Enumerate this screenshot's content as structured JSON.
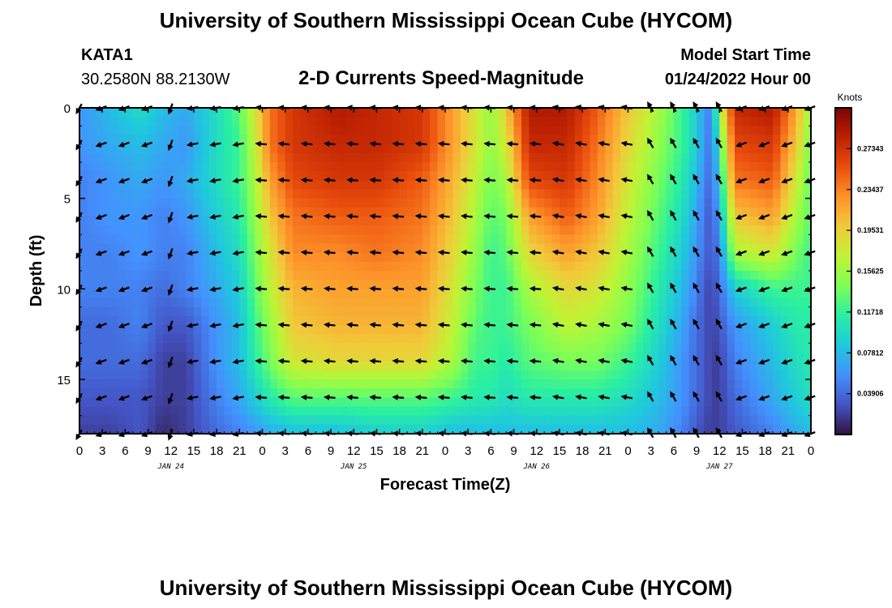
{
  "header": {
    "title": "University of Southern Mississippi Ocean Cube (HYCOM)",
    "station": "KATA1",
    "coords": "30.2580N  88.2130W",
    "plot_title": "2-D Currents Speed-Magnitude",
    "model_start_label": "Model Start Time",
    "model_start_value": "01/24/2022 Hour 00"
  },
  "footer": {
    "title": "University of Southern Mississippi Ocean Cube (HYCOM)"
  },
  "chart_data": {
    "type": "heatmap",
    "title": "2-D Currents Speed-Magnitude",
    "xlabel": "Forecast Time(Z)",
    "ylabel": "Depth (ft)",
    "x_range_hours": [
      0,
      96
    ],
    "y_range_ft": [
      0,
      18
    ],
    "y_inverted": true,
    "x_ticks": [
      "0",
      "3",
      "6",
      "9",
      "12",
      "15",
      "18",
      "21",
      "0",
      "3",
      "6",
      "9",
      "12",
      "15",
      "18",
      "21",
      "0",
      "3",
      "6",
      "9",
      "12",
      "15",
      "18",
      "21",
      "0",
      "3",
      "6",
      "9",
      "12",
      "15",
      "18",
      "21",
      "0"
    ],
    "y_ticks": [
      "0",
      "5",
      "10",
      "15"
    ],
    "date_labels": [
      {
        "label": "JAN 24",
        "hour": 12
      },
      {
        "label": "JAN 25",
        "hour": 36
      },
      {
        "label": "JAN 26",
        "hour": 60
      },
      {
        "label": "JAN 27",
        "hour": 84
      }
    ],
    "colorbar": {
      "label": "Knots",
      "ticks": [
        "0.27343",
        "0.23437",
        "0.19531",
        "0.15625",
        "0.11718",
        "0.07812",
        "0.03906"
      ],
      "tick_values": [
        0.27343,
        0.23437,
        0.19531,
        0.15625,
        0.11718,
        0.07812,
        0.03906
      ],
      "range": [
        0.0,
        0.3125
      ],
      "colors": [
        "#30123b",
        "#4454c4",
        "#4490fe",
        "#1fc8de",
        "#29efa2",
        "#7dff56",
        "#c1f334",
        "#f1ca3a",
        "#fe922a",
        "#ea4f0d",
        "#be2102",
        "#7a0403"
      ]
    },
    "profile_depths_ft": [
      0,
      2,
      4,
      6,
      8,
      10,
      12,
      14,
      16,
      18
    ],
    "time_profiles": [
      {
        "hour": 0,
        "speeds": [
          0.06,
          0.06,
          0.05,
          0.05,
          0.05,
          0.05,
          0.04,
          0.04,
          0.03,
          0.02
        ]
      },
      {
        "hour": 4,
        "speeds": [
          0.08,
          0.07,
          0.06,
          0.06,
          0.05,
          0.05,
          0.04,
          0.04,
          0.03,
          0.02
        ]
      },
      {
        "hour": 8,
        "speeds": [
          0.1,
          0.08,
          0.07,
          0.06,
          0.06,
          0.05,
          0.05,
          0.04,
          0.03,
          0.03
        ]
      },
      {
        "hour": 11,
        "speeds": [
          0.08,
          0.07,
          0.06,
          0.05,
          0.05,
          0.04,
          0.03,
          0.02,
          0.02,
          0.01
        ]
      },
      {
        "hour": 14,
        "speeds": [
          0.07,
          0.06,
          0.07,
          0.06,
          0.05,
          0.05,
          0.03,
          0.02,
          0.02,
          0.02
        ]
      },
      {
        "hour": 18,
        "speeds": [
          0.1,
          0.1,
          0.1,
          0.09,
          0.08,
          0.07,
          0.06,
          0.06,
          0.05,
          0.04
        ]
      },
      {
        "hour": 21,
        "speeds": [
          0.13,
          0.12,
          0.12,
          0.11,
          0.1,
          0.09,
          0.08,
          0.08,
          0.07,
          0.05
        ]
      },
      {
        "hour": 23,
        "speeds": [
          0.18,
          0.17,
          0.16,
          0.15,
          0.14,
          0.13,
          0.12,
          0.11,
          0.09,
          0.06
        ]
      },
      {
        "hour": 25,
        "speeds": [
          0.24,
          0.24,
          0.22,
          0.2,
          0.18,
          0.17,
          0.15,
          0.14,
          0.11,
          0.07
        ]
      },
      {
        "hour": 28,
        "speeds": [
          0.27,
          0.27,
          0.26,
          0.24,
          0.23,
          0.21,
          0.2,
          0.18,
          0.13,
          0.08
        ]
      },
      {
        "hour": 34,
        "speeds": [
          0.29,
          0.28,
          0.27,
          0.25,
          0.23,
          0.22,
          0.21,
          0.19,
          0.13,
          0.08
        ]
      },
      {
        "hour": 39,
        "speeds": [
          0.28,
          0.28,
          0.27,
          0.25,
          0.24,
          0.22,
          0.21,
          0.19,
          0.13,
          0.09
        ]
      },
      {
        "hour": 45,
        "speeds": [
          0.27,
          0.27,
          0.25,
          0.24,
          0.23,
          0.22,
          0.21,
          0.19,
          0.13,
          0.09
        ]
      },
      {
        "hour": 49,
        "speeds": [
          0.22,
          0.22,
          0.21,
          0.2,
          0.19,
          0.18,
          0.17,
          0.16,
          0.12,
          0.08
        ]
      },
      {
        "hour": 52,
        "speeds": [
          0.18,
          0.18,
          0.17,
          0.16,
          0.15,
          0.14,
          0.13,
          0.12,
          0.11,
          0.08
        ]
      },
      {
        "hour": 54,
        "speeds": [
          0.15,
          0.15,
          0.14,
          0.13,
          0.12,
          0.12,
          0.12,
          0.12,
          0.11,
          0.08
        ]
      },
      {
        "hour": 56,
        "speeds": [
          0.2,
          0.18,
          0.16,
          0.14,
          0.13,
          0.12,
          0.12,
          0.11,
          0.1,
          0.08
        ]
      },
      {
        "hour": 59,
        "speeds": [
          0.29,
          0.28,
          0.26,
          0.22,
          0.19,
          0.16,
          0.14,
          0.13,
          0.11,
          0.08
        ]
      },
      {
        "hour": 64,
        "speeds": [
          0.29,
          0.28,
          0.27,
          0.25,
          0.22,
          0.19,
          0.17,
          0.14,
          0.11,
          0.08
        ]
      },
      {
        "hour": 68,
        "speeds": [
          0.25,
          0.24,
          0.23,
          0.22,
          0.2,
          0.18,
          0.16,
          0.14,
          0.11,
          0.08
        ]
      },
      {
        "hour": 72,
        "speeds": [
          0.2,
          0.19,
          0.18,
          0.17,
          0.16,
          0.15,
          0.14,
          0.12,
          0.1,
          0.08
        ]
      },
      {
        "hour": 76,
        "speeds": [
          0.16,
          0.15,
          0.14,
          0.13,
          0.12,
          0.11,
          0.1,
          0.09,
          0.08,
          0.07
        ]
      },
      {
        "hour": 79,
        "speeds": [
          0.12,
          0.12,
          0.11,
          0.1,
          0.09,
          0.08,
          0.07,
          0.06,
          0.06,
          0.05
        ]
      },
      {
        "hour": 81,
        "speeds": [
          0.09,
          0.09,
          0.08,
          0.07,
          0.06,
          0.05,
          0.04,
          0.04,
          0.04,
          0.03
        ]
      },
      {
        "hour": 82,
        "speeds": [
          0.06,
          0.06,
          0.05,
          0.04,
          0.04,
          0.03,
          0.03,
          0.03,
          0.03,
          0.02
        ]
      },
      {
        "hour": 83,
        "speeds": [
          0.05,
          0.04,
          0.04,
          0.03,
          0.03,
          0.02,
          0.02,
          0.02,
          0.02,
          0.02
        ]
      },
      {
        "hour": 84,
        "speeds": [
          0.16,
          0.12,
          0.09,
          0.07,
          0.05,
          0.04,
          0.03,
          0.02,
          0.02,
          0.02
        ]
      },
      {
        "hour": 86,
        "speeds": [
          0.28,
          0.26,
          0.24,
          0.2,
          0.16,
          0.09,
          0.06,
          0.05,
          0.04,
          0.03
        ]
      },
      {
        "hour": 91,
        "speeds": [
          0.29,
          0.27,
          0.25,
          0.22,
          0.18,
          0.12,
          0.09,
          0.08,
          0.07,
          0.05
        ]
      },
      {
        "hour": 94,
        "speeds": [
          0.22,
          0.2,
          0.18,
          0.16,
          0.14,
          0.12,
          0.11,
          0.1,
          0.09,
          0.07
        ]
      },
      {
        "hour": 96,
        "speeds": [
          0.15,
          0.14,
          0.13,
          0.13,
          0.12,
          0.12,
          0.11,
          0.11,
          0.1,
          0.08
        ]
      }
    ],
    "vector_depths_ft": [
      0,
      2,
      4,
      6,
      8,
      10,
      12,
      14,
      16,
      18
    ],
    "vector_times_hours": [
      0,
      3,
      6,
      9,
      12,
      15,
      18,
      21,
      24,
      27,
      30,
      33,
      36,
      39,
      42,
      45,
      48,
      51,
      54,
      57,
      60,
      63,
      66,
      69,
      72,
      75,
      78,
      81,
      84,
      87,
      90,
      93,
      96
    ],
    "vector_directions_deg": [
      {
        "from_hour": 0,
        "to_hour": 2,
        "deg": 210
      },
      {
        "from_hour": 3,
        "to_hour": 11,
        "deg": 250
      },
      {
        "from_hour": 12,
        "to_hour": 14,
        "deg": 200
      },
      {
        "from_hour": 15,
        "to_hour": 21,
        "deg": 260
      },
      {
        "from_hour": 22,
        "to_hour": 62,
        "deg": 275
      },
      {
        "from_hour": 63,
        "to_hour": 73,
        "deg": 280
      },
      {
        "from_hour": 74,
        "to_hour": 84,
        "deg": 330
      },
      {
        "from_hour": 85,
        "to_hour": 96,
        "deg": 250
      }
    ]
  }
}
